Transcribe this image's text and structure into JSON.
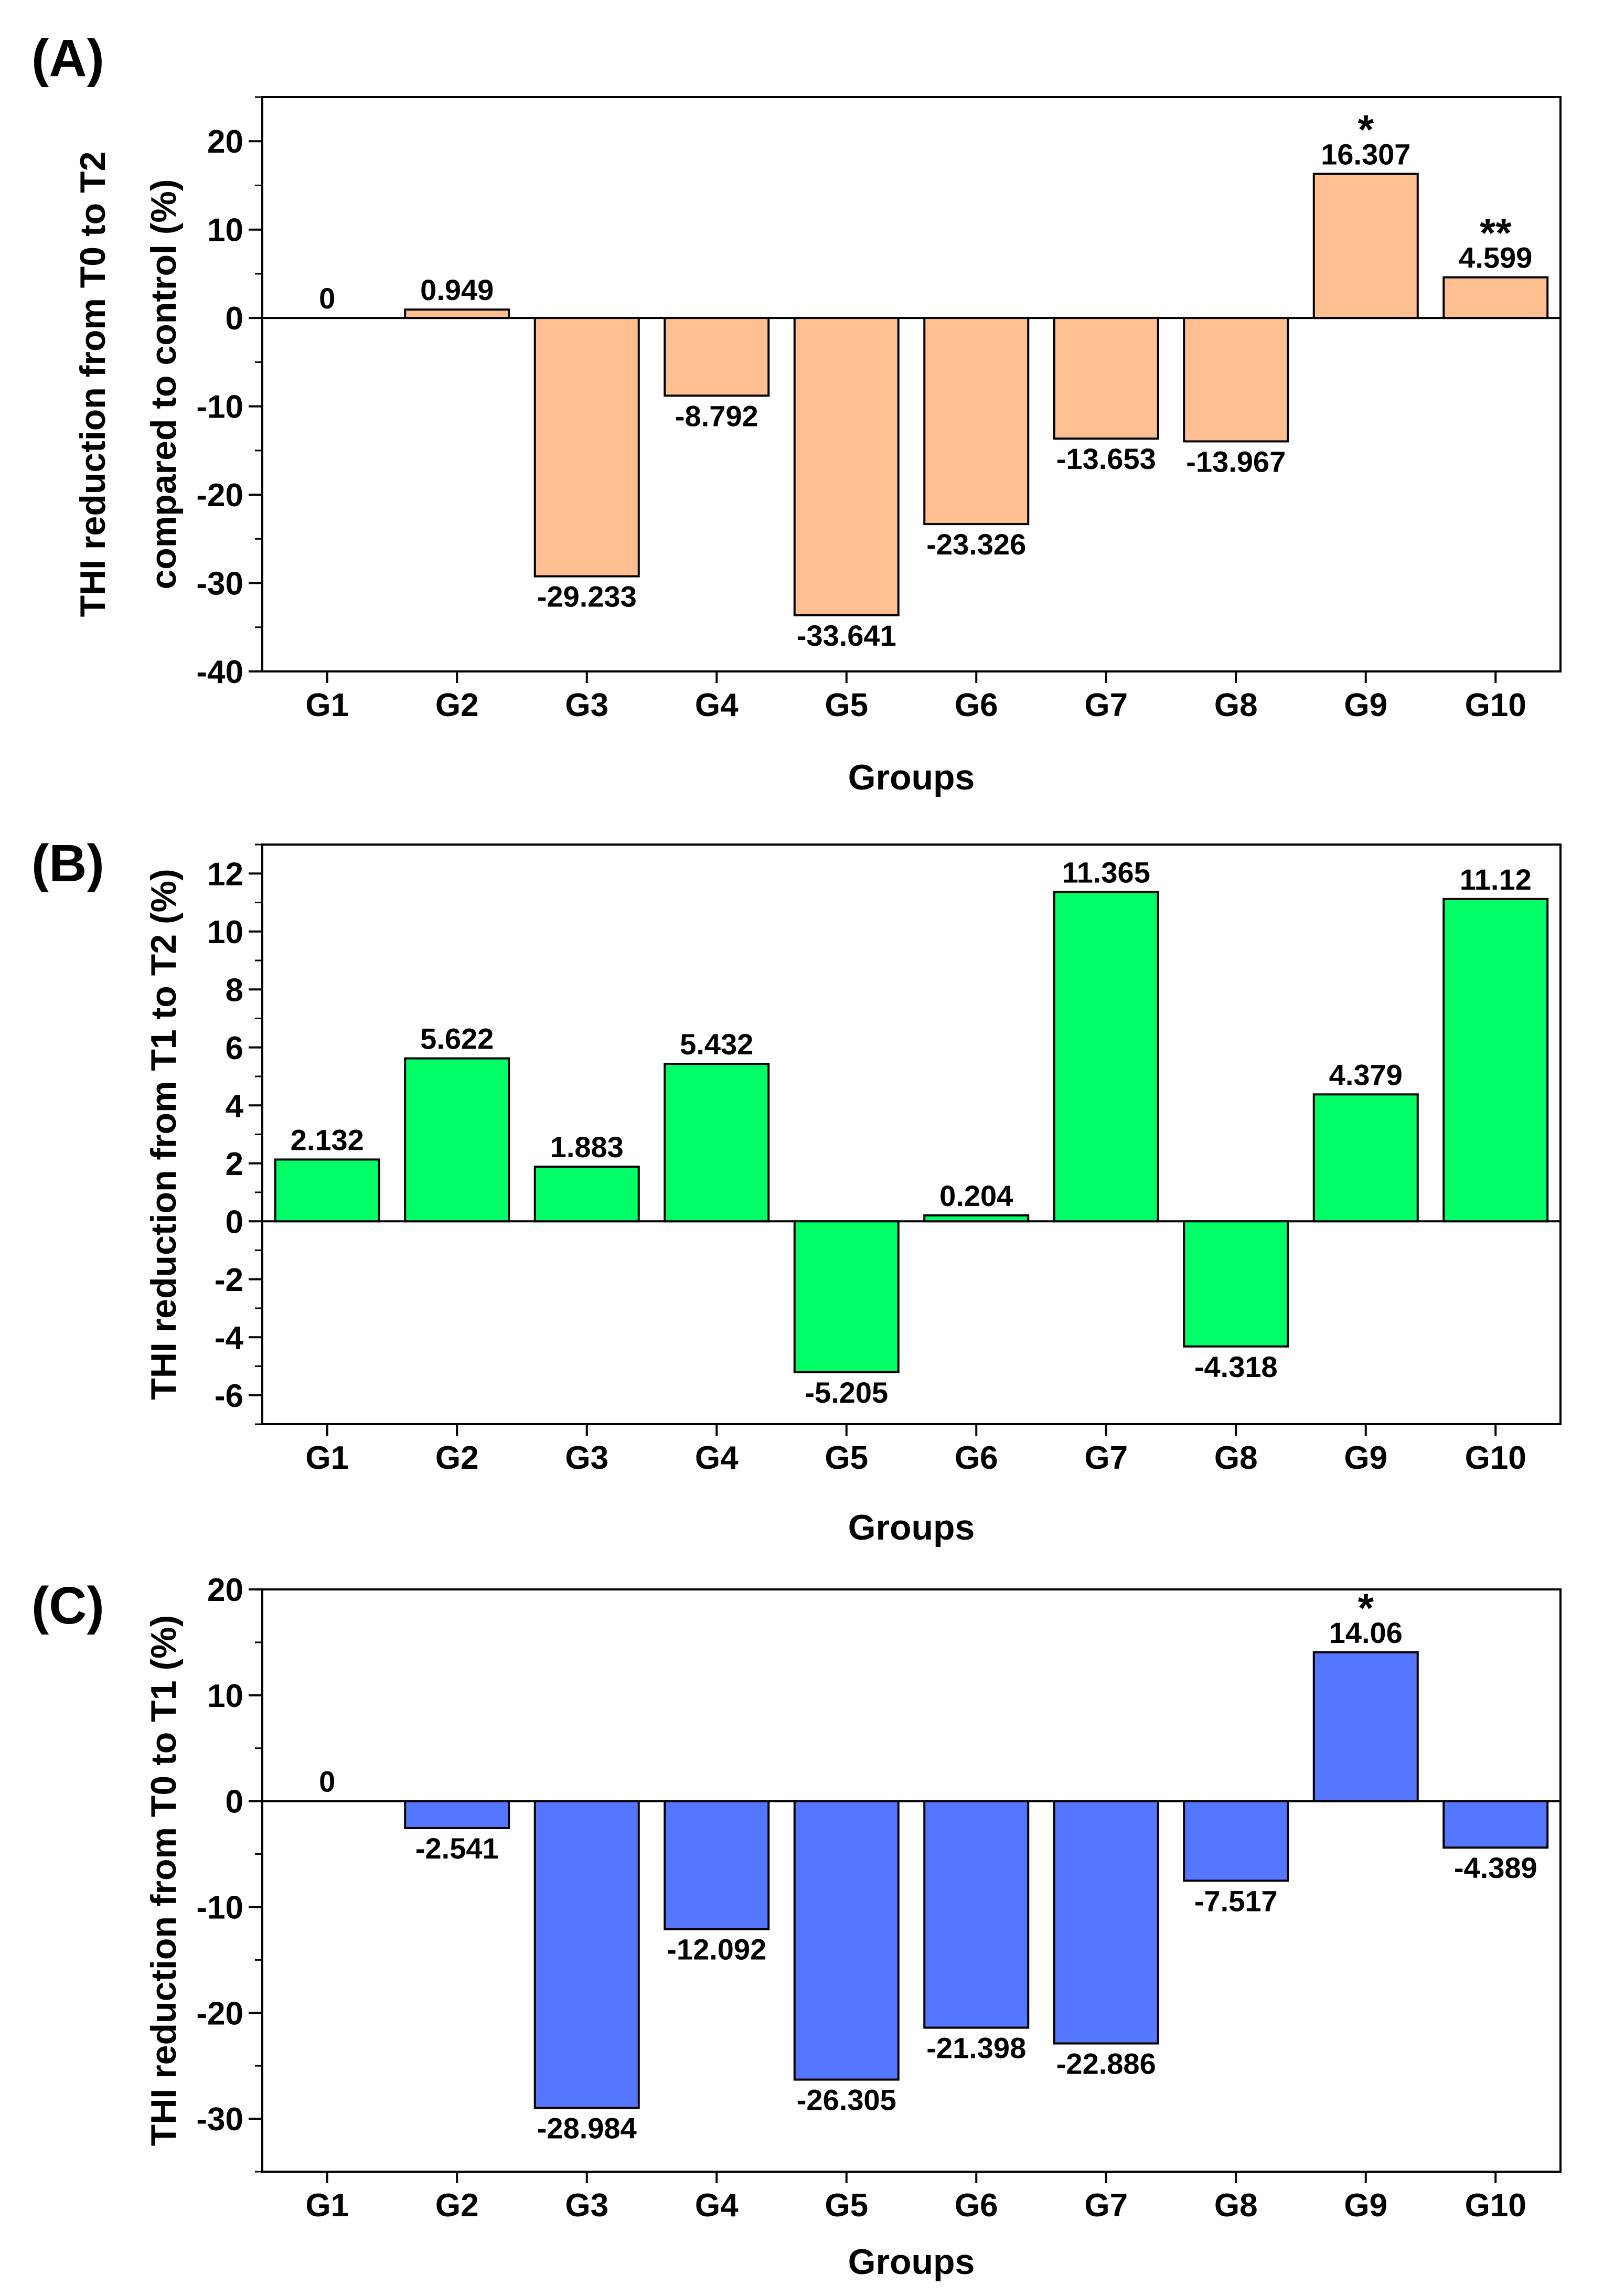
{
  "chart_data": [
    {
      "type": "bar",
      "panel": "(A)",
      "categories": [
        "G1",
        "G2",
        "G3",
        "G4",
        "G5",
        "G6",
        "G7",
        "G8",
        "G9",
        "G10"
      ],
      "values": [
        0,
        0.949,
        -29.233,
        -8.792,
        -33.641,
        -23.326,
        -13.653,
        -13.967,
        16.307,
        4.599
      ],
      "value_labels": [
        "0",
        "0.949",
        "-29.233",
        "-8.792",
        "-33.641",
        "-23.326",
        "-13.653",
        "-13.967",
        "16.307",
        "4.599"
      ],
      "annotations": [
        "",
        "",
        "",
        "",
        "",
        "",
        "",
        "",
        "*",
        "**"
      ],
      "ylabel_lines": [
        "THI reduction from T0 to T2",
        "compared to control (%)"
      ],
      "xlabel": "Groups",
      "ylim": [
        -40,
        25
      ],
      "yticks": [
        -40,
        -30,
        -20,
        -10,
        0,
        10,
        20
      ],
      "ytick_labels": [
        "-40",
        "-30",
        "-20",
        "-10",
        "0",
        "10",
        "20"
      ],
      "minor_step": 5,
      "bar_color": "#FFBF90"
    },
    {
      "type": "bar",
      "panel": "(B)",
      "categories": [
        "G1",
        "G2",
        "G3",
        "G4",
        "G5",
        "G6",
        "G7",
        "G8",
        "G9",
        "G10"
      ],
      "values": [
        2.132,
        5.622,
        1.883,
        5.432,
        -5.205,
        0.204,
        11.365,
        -4.318,
        4.379,
        11.12
      ],
      "value_labels": [
        "2.132",
        "5.622",
        "1.883",
        "5.432",
        "-5.205",
        "0.204",
        "11.365",
        "-4.318",
        "4.379",
        "11.12"
      ],
      "annotations": [
        "",
        "",
        "",
        "",
        "",
        "",
        "",
        "",
        "",
        ""
      ],
      "ylabel_lines": [
        "THI reduction from T1 to T2 (%)"
      ],
      "xlabel": "Groups",
      "ylim": [
        -7,
        13
      ],
      "yticks": [
        -6,
        -4,
        -2,
        0,
        2,
        4,
        6,
        8,
        10,
        12
      ],
      "ytick_labels": [
        "-6",
        "-4",
        "-2",
        "0",
        "2",
        "4",
        "6",
        "8",
        "10",
        "12"
      ],
      "minor_step": 1,
      "bar_color": "#00FF66"
    },
    {
      "type": "bar",
      "panel": "(C)",
      "categories": [
        "G1",
        "G2",
        "G3",
        "G4",
        "G5",
        "G6",
        "G7",
        "G8",
        "G9",
        "G10"
      ],
      "values": [
        0,
        -2.541,
        -28.984,
        -12.092,
        -26.305,
        -21.398,
        -22.886,
        -7.517,
        14.06,
        -4.389
      ],
      "value_labels": [
        "0",
        "-2.541",
        "-28.984",
        "-12.092",
        "-26.305",
        "-21.398",
        "-22.886",
        "-7.517",
        "14.06",
        "-4.389"
      ],
      "annotations": [
        "",
        "",
        "",
        "",
        "",
        "",
        "",
        "",
        "*",
        ""
      ],
      "ylabel_lines": [
        "THI reduction from T0 to T1 (%)"
      ],
      "xlabel": "Groups",
      "ylim": [
        -35,
        20
      ],
      "yticks": [
        -30,
        -20,
        -10,
        0,
        10,
        20
      ],
      "ytick_labels": [
        "-30",
        "-20",
        "-10",
        "0",
        "10",
        "20"
      ],
      "minor_step": 5,
      "bar_color": "#5577FF"
    }
  ]
}
